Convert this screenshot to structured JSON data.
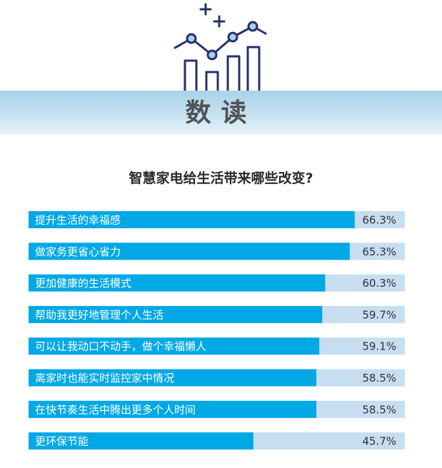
{
  "banner": {
    "title": "数读"
  },
  "question": "智慧家电给生活带来哪些改变?",
  "colors": {
    "bar_fill": "#00a8e6",
    "bar_track": "#c7def0",
    "banner": "#a9d2e8",
    "icon_stroke": "#27306e"
  },
  "header_icon": "line-and-bar-chart-icon",
  "chart_data": {
    "type": "bar",
    "orientation": "horizontal",
    "categories": [
      "提升生活的幸福感",
      "做家务更省心省力",
      "更加健康的生活模式",
      "帮助我更好地管理个人生活",
      "可以让我动口不动手，做个幸福懒人",
      "离家时也能实时监控家中情况",
      "在快节奏生活中腾出更多个人时间",
      "更环保节能"
    ],
    "values": [
      66.3,
      65.3,
      60.3,
      59.7,
      59.1,
      58.5,
      58.5,
      45.7
    ],
    "value_labels": [
      "66.3%",
      "65.3%",
      "60.3%",
      "59.7%",
      "59.1%",
      "58.5%",
      "58.5%",
      "45.7%"
    ],
    "unit": "%",
    "xlim": [
      0,
      76.5
    ]
  }
}
